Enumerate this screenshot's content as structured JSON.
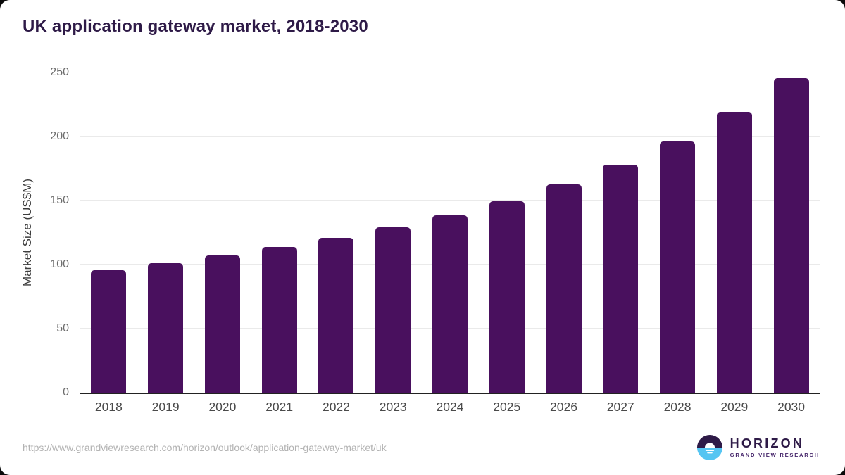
{
  "title": "UK application gateway market, 2018-2030",
  "source_url": "https://www.grandviewresearch.com/horizon/outlook/application-gateway-market/uk",
  "logo": {
    "name": "HORIZON",
    "subtitle": "GRAND VIEW RESEARCH"
  },
  "colors": {
    "bar": "#49105e",
    "title": "#2e1a47",
    "axis_line": "#222222",
    "gridline": "#eaeaea",
    "tick_label": "#6b6b6b",
    "x_label": "#4a4a4a",
    "url_text": "#b3b3b3",
    "logo_purple": "#2e1a47",
    "logo_blue": "#56c5f2"
  },
  "chart_data": {
    "type": "bar",
    "title": "UK application gateway market, 2018-2030",
    "categories": [
      "2018",
      "2019",
      "2020",
      "2021",
      "2022",
      "2023",
      "2024",
      "2025",
      "2026",
      "2027",
      "2028",
      "2029",
      "2030"
    ],
    "values": [
      95.4,
      100.9,
      106.9,
      113.5,
      120.9,
      129.1,
      138.7,
      149.5,
      162.6,
      178.0,
      196.0,
      219.0,
      245.6
    ],
    "xlabel": "",
    "ylabel": "Market Size (US$M)",
    "ylim": [
      0,
      250
    ],
    "yticks": [
      0,
      50,
      100,
      150,
      200,
      250
    ],
    "grid": true,
    "legend": false
  }
}
